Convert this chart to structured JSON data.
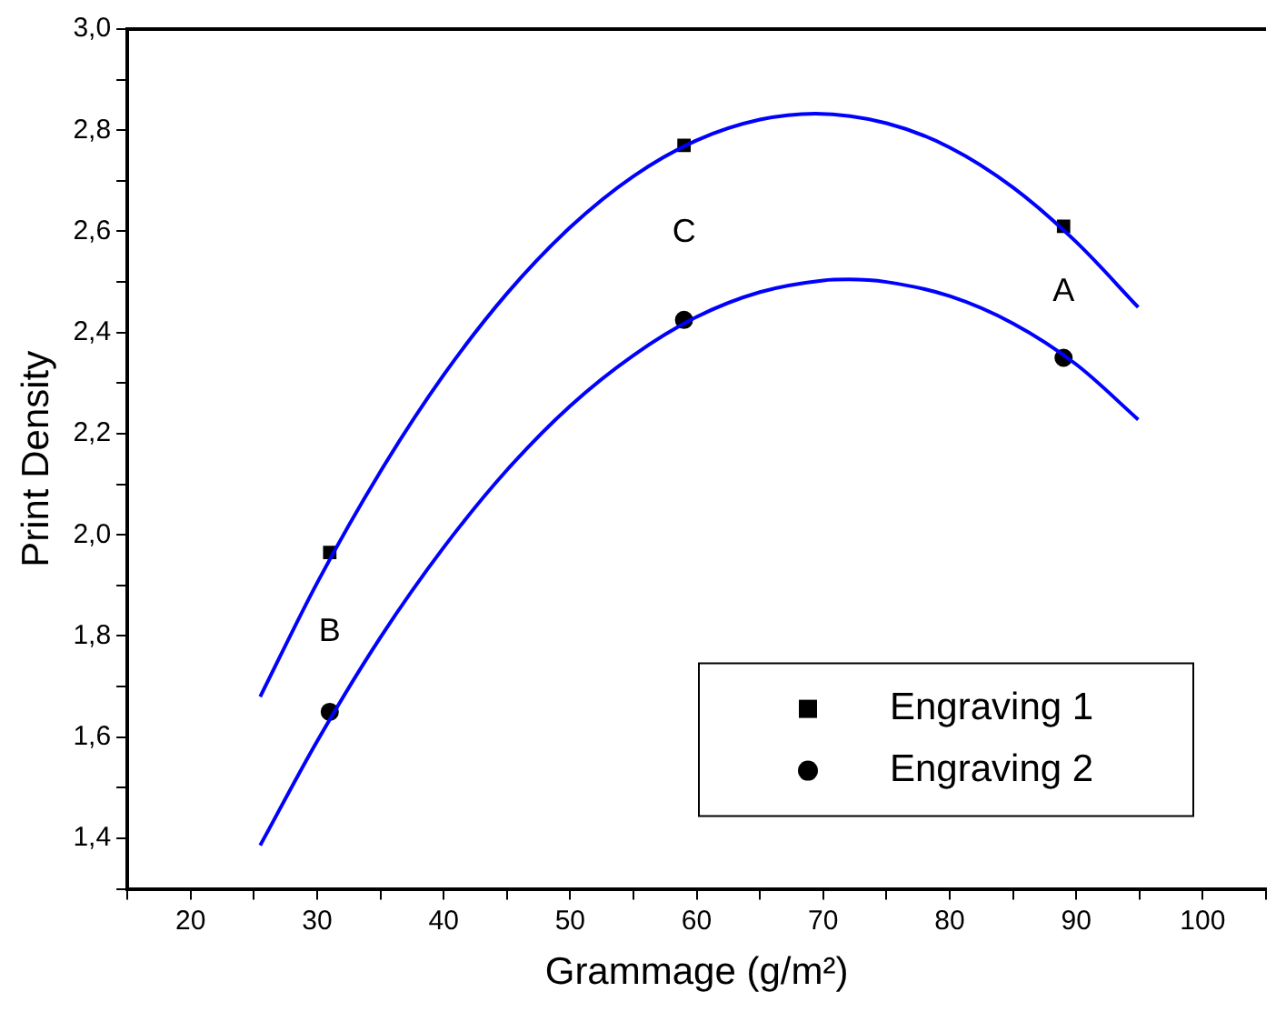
{
  "chart_data": {
    "type": "scatter",
    "xlabel": "Grammage (g/m²)",
    "ylabel": "Print Density",
    "xlim": [
      15,
      105
    ],
    "ylim": [
      1.3,
      3.0
    ],
    "xticks": [
      {
        "value": 15,
        "label": null
      },
      20,
      {
        "value": 25,
        "label": null
      },
      30,
      {
        "value": 35,
        "label": null
      },
      40,
      {
        "value": 45,
        "label": null
      },
      50,
      {
        "value": 55,
        "label": null
      },
      60,
      {
        "value": 65,
        "label": null
      },
      70,
      {
        "value": 75,
        "label": null
      },
      80,
      {
        "value": 85,
        "label": null
      },
      90,
      {
        "value": 95,
        "label": null
      },
      100,
      {
        "value": 105,
        "label": null
      }
    ],
    "yticks": [
      {
        "value": 1.3,
        "label": null
      },
      {
        "value": 1.4,
        "label": "1,4"
      },
      {
        "value": 1.5,
        "label": null
      },
      {
        "value": 1.6,
        "label": "1,6"
      },
      {
        "value": 1.7,
        "label": null
      },
      {
        "value": 1.8,
        "label": "1,8"
      },
      {
        "value": 1.9,
        "label": null
      },
      {
        "value": 2.0,
        "label": "2,0"
      },
      {
        "value": 2.1,
        "label": null
      },
      {
        "value": 2.2,
        "label": "2,2"
      },
      {
        "value": 2.3,
        "label": null
      },
      {
        "value": 2.4,
        "label": "2,4"
      },
      {
        "value": 2.5,
        "label": null
      },
      {
        "value": 2.6,
        "label": "2,6"
      },
      {
        "value": 2.7,
        "label": null
      },
      {
        "value": 2.8,
        "label": "2,8"
      },
      {
        "value": 2.9,
        "label": null
      },
      {
        "value": 3.0,
        "label": "3,0"
      }
    ],
    "grid": false,
    "legend": "bottom right",
    "series": [
      {
        "name": "Engraving 1",
        "color": "#000000",
        "marker": "square",
        "x": [
          31,
          59,
          89
        ],
        "values": [
          1.965,
          2.77,
          2.61
        ]
      },
      {
        "name": "Engraving 2",
        "color": "#000000",
        "marker": "circle",
        "x": [
          31,
          59,
          89
        ],
        "values": [
          1.65,
          2.425,
          2.35
        ]
      },
      {
        "type": "line",
        "color": "#0000ff",
        "marker": "none",
        "x": [
          25.5,
          30,
          35,
          40,
          45,
          50,
          55,
          60,
          65,
          69.4,
          75,
          80,
          85,
          90,
          94.9
        ],
        "values": [
          1.68,
          1.905,
          2.125,
          2.316,
          2.477,
          2.608,
          2.709,
          2.78,
          2.821,
          2.833,
          2.814,
          2.766,
          2.687,
          2.579,
          2.45
        ]
      },
      {
        "type": "line",
        "color": "#0000ff",
        "marker": "none",
        "x": [
          25.5,
          30,
          35,
          40,
          45,
          50,
          55,
          60,
          65,
          70,
          72,
          75,
          80,
          85,
          90,
          94.9
        ],
        "values": [
          1.386,
          1.592,
          1.797,
          1.975,
          2.128,
          2.255,
          2.355,
          2.431,
          2.48,
          2.503,
          2.505,
          2.5,
          2.472,
          2.418,
          2.337,
          2.228
        ]
      }
    ],
    "annotations": [
      "B",
      "C",
      "A"
    ]
  }
}
